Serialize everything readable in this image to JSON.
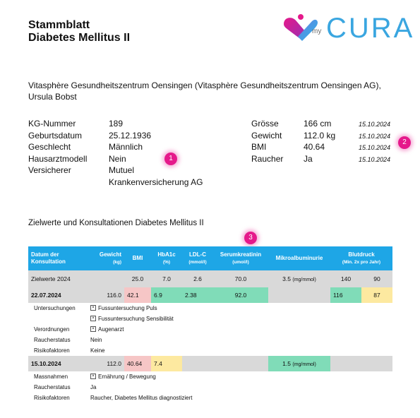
{
  "header": {
    "title_line1": "Stammblatt",
    "title_line2": "Diabetes Mellitus II",
    "logo_my": "my",
    "logo_text": "CURA"
  },
  "org": {
    "line1": "Vitasphère Gesundheitszentrum Oensingen (Vitasphère Gesundheitszentrum Oensingen AG),",
    "line2": "Ursula Bobst"
  },
  "patient": {
    "left": [
      {
        "label": "KG-Nummer",
        "value": "189"
      },
      {
        "label": "Geburtsdatum",
        "value": "25.12.1936"
      },
      {
        "label": "Geschlecht",
        "value": "Männlich"
      },
      {
        "label": "Hausarztmodell",
        "value": "Nein"
      },
      {
        "label": "Versicherer",
        "value": "Mutuel"
      }
    ],
    "insurer_line2": "Krankenversicherung AG",
    "right": [
      {
        "label": "Grösse",
        "value": "166 cm",
        "date": "15.10.2024"
      },
      {
        "label": "Gewicht",
        "value": "112.0 kg",
        "date": "15.10.2024"
      },
      {
        "label": "BMI",
        "value": "40.64",
        "date": "15.10.2024"
      },
      {
        "label": "Raucher",
        "value": "Ja",
        "date": "15.10.2024"
      }
    ]
  },
  "badges": {
    "b1": "1",
    "b2": "2",
    "b3": "3"
  },
  "section_title": "Zielwerte und Konsultationen Diabetes Mellitus II",
  "table": {
    "headers": {
      "datum": "Datum der",
      "datum2": "Konsultation",
      "gewicht": "Gewicht",
      "gewicht_unit": "(kg)",
      "bmi": "BMI",
      "hba1c": "HbA1c",
      "hba1c_unit": "(%)",
      "ldl": "LDL-C",
      "ldl_unit": "(mmol/l)",
      "serum": "Serumkreatinin",
      "serum_unit": "(umol/l)",
      "mikro": "Mikroalbuminurie",
      "blut": "Blutdruck",
      "blut_unit": "(Min. 2x pro Jahr)"
    },
    "ziel": {
      "label": "Zielwerte 2024",
      "bmi": "25.0",
      "hba1c": "7.0",
      "ldl": "2.6",
      "serum": "70.0",
      "mikro_value": "3.5",
      "mikro_unit": "(mg/mmol)",
      "bp_sys": "140",
      "bp_dia": "90"
    },
    "visit1": {
      "date": "22.07.2024",
      "gewicht": "116.0",
      "bmi": "42.1",
      "hba1c": "6.9",
      "ldl": "2.38",
      "serum": "92.0",
      "bp_sys": "116",
      "bp_dia": "87",
      "details": {
        "untersuchungen_label": "Untersuchungen",
        "untersuchungen_1": "Fussuntersuchung Puls",
        "untersuchungen_2": "Fussuntersuchung Sensibilität",
        "verordnungen_label": "Verordnungen",
        "verordnungen_1": "Augenarzt",
        "raucher_label": "Raucherstatus",
        "raucher_value": "Nein",
        "risiko_label": "Risikofaktoren",
        "risiko_value": "Keine"
      }
    },
    "visit2": {
      "date": "15.10.2024",
      "gewicht": "112.0",
      "bmi": "40.64",
      "hba1c": "7.4",
      "mikro_value": "1.5",
      "mikro_unit": "(mg/mmol)",
      "details": {
        "massnahmen_label": "Massnahmen",
        "massnahmen_1": "Ernährung / Bewegung",
        "raucher_label": "Raucherstatus",
        "raucher_value": "Ja",
        "risiko_label": "Risikofaktoren",
        "risiko_value": "Raucher, Diabetes Mellitus diagnostiziert"
      }
    }
  },
  "colors": {
    "header_blue": "#1ea6e6",
    "badge_pink": "#e5198b",
    "cell_red": "#f6c6c6",
    "cell_green": "#80dcb8",
    "cell_yellow": "#fde9a0",
    "row_gray": "#d9d9d9"
  }
}
